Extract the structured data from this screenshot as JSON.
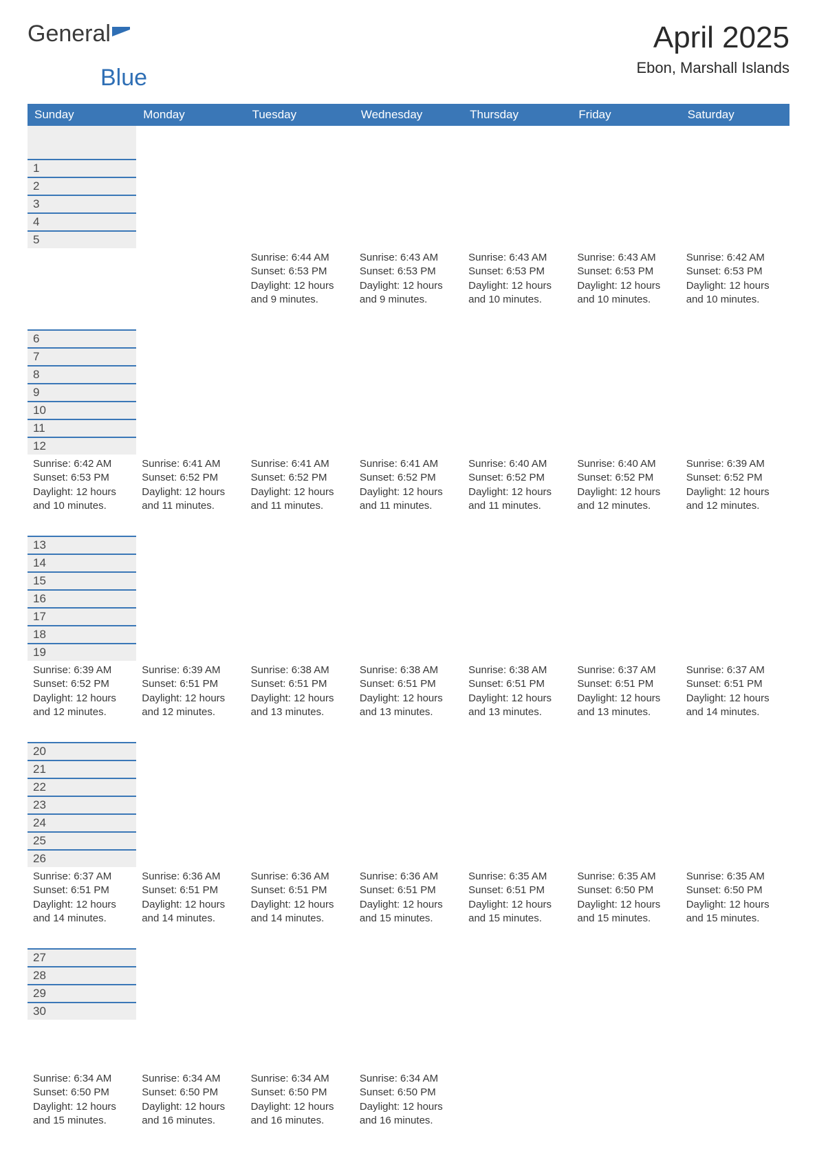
{
  "logo": {
    "text1": "General",
    "text2": "Blue",
    "flag_color": "#2f6fb5"
  },
  "title": "April 2025",
  "location": "Ebon, Marshall Islands",
  "colors": {
    "header_bg": "#3a77b7",
    "header_fg": "#ffffff",
    "daynum_bg": "#eeeeee",
    "row_border": "#3a77b7",
    "text": "#383838"
  },
  "day_headers": [
    "Sunday",
    "Monday",
    "Tuesday",
    "Wednesday",
    "Thursday",
    "Friday",
    "Saturday"
  ],
  "weeks": [
    [
      null,
      null,
      {
        "d": "1",
        "sunrise": "6:44 AM",
        "sunset": "6:53 PM",
        "daylight": "12 hours and 9 minutes."
      },
      {
        "d": "2",
        "sunrise": "6:43 AM",
        "sunset": "6:53 PM",
        "daylight": "12 hours and 9 minutes."
      },
      {
        "d": "3",
        "sunrise": "6:43 AM",
        "sunset": "6:53 PM",
        "daylight": "12 hours and 10 minutes."
      },
      {
        "d": "4",
        "sunrise": "6:43 AM",
        "sunset": "6:53 PM",
        "daylight": "12 hours and 10 minutes."
      },
      {
        "d": "5",
        "sunrise": "6:42 AM",
        "sunset": "6:53 PM",
        "daylight": "12 hours and 10 minutes."
      }
    ],
    [
      {
        "d": "6",
        "sunrise": "6:42 AM",
        "sunset": "6:53 PM",
        "daylight": "12 hours and 10 minutes."
      },
      {
        "d": "7",
        "sunrise": "6:41 AM",
        "sunset": "6:52 PM",
        "daylight": "12 hours and 11 minutes."
      },
      {
        "d": "8",
        "sunrise": "6:41 AM",
        "sunset": "6:52 PM",
        "daylight": "12 hours and 11 minutes."
      },
      {
        "d": "9",
        "sunrise": "6:41 AM",
        "sunset": "6:52 PM",
        "daylight": "12 hours and 11 minutes."
      },
      {
        "d": "10",
        "sunrise": "6:40 AM",
        "sunset": "6:52 PM",
        "daylight": "12 hours and 11 minutes."
      },
      {
        "d": "11",
        "sunrise": "6:40 AM",
        "sunset": "6:52 PM",
        "daylight": "12 hours and 12 minutes."
      },
      {
        "d": "12",
        "sunrise": "6:39 AM",
        "sunset": "6:52 PM",
        "daylight": "12 hours and 12 minutes."
      }
    ],
    [
      {
        "d": "13",
        "sunrise": "6:39 AM",
        "sunset": "6:52 PM",
        "daylight": "12 hours and 12 minutes."
      },
      {
        "d": "14",
        "sunrise": "6:39 AM",
        "sunset": "6:51 PM",
        "daylight": "12 hours and 12 minutes."
      },
      {
        "d": "15",
        "sunrise": "6:38 AM",
        "sunset": "6:51 PM",
        "daylight": "12 hours and 13 minutes."
      },
      {
        "d": "16",
        "sunrise": "6:38 AM",
        "sunset": "6:51 PM",
        "daylight": "12 hours and 13 minutes."
      },
      {
        "d": "17",
        "sunrise": "6:38 AM",
        "sunset": "6:51 PM",
        "daylight": "12 hours and 13 minutes."
      },
      {
        "d": "18",
        "sunrise": "6:37 AM",
        "sunset": "6:51 PM",
        "daylight": "12 hours and 13 minutes."
      },
      {
        "d": "19",
        "sunrise": "6:37 AM",
        "sunset": "6:51 PM",
        "daylight": "12 hours and 14 minutes."
      }
    ],
    [
      {
        "d": "20",
        "sunrise": "6:37 AM",
        "sunset": "6:51 PM",
        "daylight": "12 hours and 14 minutes."
      },
      {
        "d": "21",
        "sunrise": "6:36 AM",
        "sunset": "6:51 PM",
        "daylight": "12 hours and 14 minutes."
      },
      {
        "d": "22",
        "sunrise": "6:36 AM",
        "sunset": "6:51 PM",
        "daylight": "12 hours and 14 minutes."
      },
      {
        "d": "23",
        "sunrise": "6:36 AM",
        "sunset": "6:51 PM",
        "daylight": "12 hours and 15 minutes."
      },
      {
        "d": "24",
        "sunrise": "6:35 AM",
        "sunset": "6:51 PM",
        "daylight": "12 hours and 15 minutes."
      },
      {
        "d": "25",
        "sunrise": "6:35 AM",
        "sunset": "6:50 PM",
        "daylight": "12 hours and 15 minutes."
      },
      {
        "d": "26",
        "sunrise": "6:35 AM",
        "sunset": "6:50 PM",
        "daylight": "12 hours and 15 minutes."
      }
    ],
    [
      {
        "d": "27",
        "sunrise": "6:34 AM",
        "sunset": "6:50 PM",
        "daylight": "12 hours and 15 minutes."
      },
      {
        "d": "28",
        "sunrise": "6:34 AM",
        "sunset": "6:50 PM",
        "daylight": "12 hours and 16 minutes."
      },
      {
        "d": "29",
        "sunrise": "6:34 AM",
        "sunset": "6:50 PM",
        "daylight": "12 hours and 16 minutes."
      },
      {
        "d": "30",
        "sunrise": "6:34 AM",
        "sunset": "6:50 PM",
        "daylight": "12 hours and 16 minutes."
      },
      null,
      null,
      null
    ]
  ],
  "labels": {
    "sunrise": "Sunrise: ",
    "sunset": "Sunset: ",
    "daylight": "Daylight: "
  }
}
